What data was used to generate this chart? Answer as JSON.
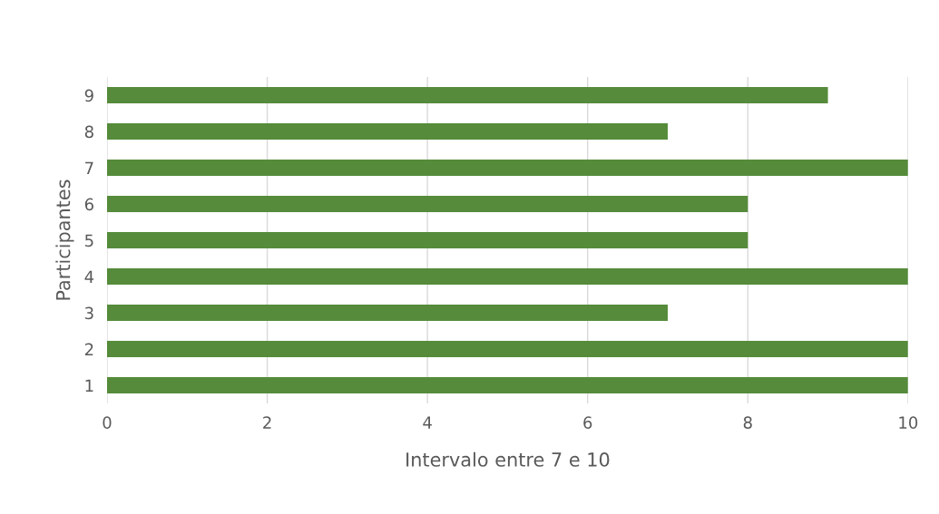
{
  "chart_data": {
    "type": "bar",
    "orientation": "horizontal",
    "xlabel": "Intervalo entre 7 e 10",
    "ylabel": "Participantes",
    "categories": [
      "9",
      "8",
      "7",
      "6",
      "5",
      "4",
      "3",
      "2",
      "1"
    ],
    "values": [
      9,
      7,
      10,
      8,
      8,
      10,
      7,
      10,
      10
    ],
    "color": "#558b3a",
    "xlim": [
      0,
      10
    ],
    "xticks": [
      0,
      2,
      4,
      6,
      8,
      10
    ],
    "grid": "x"
  }
}
